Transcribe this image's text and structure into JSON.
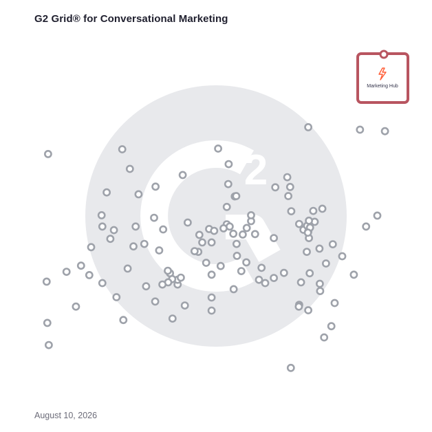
{
  "title": "G2 Grid® for Conversational Marketing",
  "date": "August 10, 2026",
  "colors": {
    "frame_top_left": "#6b3fa0",
    "frame_top_right": "#f2603d",
    "frame_bottom_left": "#2ea8d6",
    "frame_bottom_right": "#6b3fa0",
    "point": "#9ea2aa",
    "highlight": "#b85560",
    "watermark": "#e8e9ec",
    "hubspot_orange": "#ff5c35"
  },
  "chart_data": {
    "type": "scatter",
    "title": "G2 Grid® for Conversational Marketing",
    "xlabel": "",
    "ylabel": "",
    "xlim": [
      0,
      100
    ],
    "ylim": [
      0,
      100
    ],
    "quadrant_split": [
      50,
      50
    ],
    "grid": false,
    "watermark_icon": "g2-logo",
    "highlighted": {
      "label": "Marketing Hub",
      "icon": "hubspot-sprocket-icon",
      "x": 96.2,
      "y": 93.6
    },
    "points": [
      [
        3.4,
        67.2
      ],
      [
        3.0,
        32.0
      ],
      [
        3.2,
        20.6
      ],
      [
        3.6,
        14.5
      ],
      [
        8.5,
        34.7
      ],
      [
        26.0,
        63.1
      ],
      [
        23.9,
        68.5
      ],
      [
        19.6,
        56.6
      ],
      [
        18.2,
        50.3
      ],
      [
        14.8,
        33.8
      ],
      [
        12.5,
        36.4
      ],
      [
        18.4,
        47.2
      ],
      [
        15.3,
        41.5
      ],
      [
        11.1,
        25.1
      ],
      [
        21.6,
        46.2
      ],
      [
        20.6,
        43.8
      ],
      [
        28.4,
        56.1
      ],
      [
        32.7,
        49.6
      ],
      [
        33.1,
        58.2
      ],
      [
        40.6,
        61.4
      ],
      [
        30.0,
        42.4
      ],
      [
        27.0,
        41.7
      ],
      [
        25.4,
        35.6
      ],
      [
        24.2,
        21.4
      ],
      [
        27.6,
        47.2
      ],
      [
        34.1,
        40.6
      ],
      [
        35.2,
        46.4
      ],
      [
        37.1,
        34.3
      ],
      [
        39.2,
        31.2
      ],
      [
        39.2,
        32.5
      ],
      [
        37.7,
        32.7
      ],
      [
        36.6,
        31.8
      ],
      [
        37.8,
        21.8
      ],
      [
        35.0,
        31.2
      ],
      [
        33.0,
        26.5
      ],
      [
        30.5,
        30.7
      ],
      [
        36.5,
        35.0
      ],
      [
        22.3,
        27.7
      ],
      [
        18.4,
        31.6
      ],
      [
        40.1,
        33.1
      ],
      [
        42.0,
        48.3
      ],
      [
        45.2,
        44.9
      ],
      [
        47.9,
        46.5
      ],
      [
        48.6,
        42.8
      ],
      [
        48.6,
        33.9
      ],
      [
        48.6,
        27.6
      ],
      [
        48.6,
        24.0
      ],
      [
        49.3,
        46.0
      ],
      [
        44.9,
        40.2
      ],
      [
        47.1,
        37.2
      ],
      [
        53.3,
        64.4
      ],
      [
        50.4,
        68.7
      ],
      [
        53.2,
        58.9
      ],
      [
        52.8,
        52.6
      ],
      [
        55.0,
        55.5
      ],
      [
        55.4,
        55.6
      ],
      [
        52.8,
        47.8
      ],
      [
        54.6,
        45.2
      ],
      [
        51.9,
        46.7
      ],
      [
        59.5,
        48.7
      ],
      [
        58.3,
        46.8
      ],
      [
        59.5,
        50.3
      ],
      [
        60.6,
        45.1
      ],
      [
        57.2,
        45.0
      ],
      [
        53.6,
        47.2
      ],
      [
        55.5,
        42.4
      ],
      [
        55.6,
        39.1
      ],
      [
        56.8,
        34.9
      ],
      [
        54.7,
        29.9
      ],
      [
        51.1,
        36.3
      ],
      [
        58.2,
        37.3
      ],
      [
        61.7,
        32.5
      ],
      [
        62.4,
        35.8
      ],
      [
        63.4,
        31.6
      ],
      [
        65.8,
        33.0
      ],
      [
        68.6,
        34.4
      ],
      [
        65.8,
        44.0
      ],
      [
        66.2,
        58.0
      ],
      [
        69.8,
        55.6
      ],
      [
        70.3,
        58.1
      ],
      [
        69.5,
        60.8
      ],
      [
        70.6,
        51.4
      ],
      [
        74.0,
        46.3
      ],
      [
        75.3,
        74.6
      ],
      [
        72.8,
        47.9
      ],
      [
        75.0,
        47.4
      ],
      [
        75.3,
        45.8
      ],
      [
        75.5,
        44.0
      ],
      [
        75.8,
        46.9
      ],
      [
        74.9,
        40.2
      ],
      [
        77.1,
        48.5
      ],
      [
        75.2,
        45.5
      ],
      [
        72.8,
        25.6
      ],
      [
        76.7,
        51.5
      ],
      [
        75.5,
        48.8
      ],
      [
        79.2,
        52.1
      ],
      [
        78.4,
        41.1
      ],
      [
        75.7,
        34.3
      ],
      [
        73.3,
        31.8
      ],
      [
        75.3,
        24.1
      ],
      [
        80.2,
        37.0
      ],
      [
        82.6,
        26.1
      ],
      [
        81.7,
        19.7
      ],
      [
        78.5,
        31.4
      ],
      [
        78.6,
        29.4
      ],
      [
        84.7,
        39.0
      ],
      [
        89.6,
        73.9
      ],
      [
        91.3,
        47.2
      ],
      [
        82.1,
        42.3
      ],
      [
        79.7,
        16.6
      ],
      [
        87.9,
        33.9
      ],
      [
        72.7,
        25.1
      ],
      [
        70.5,
        8.2
      ],
      [
        94.4,
        50.2
      ],
      [
        96.5,
        73.5
      ],
      [
        46.0,
        42.8
      ],
      [
        43.9,
        40.4
      ],
      [
        41.2,
        25.4
      ]
    ]
  }
}
